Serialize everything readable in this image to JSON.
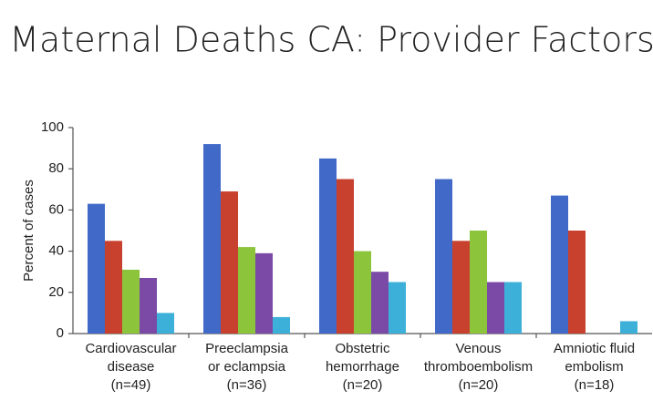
{
  "chart_data": {
    "type": "bar",
    "title": "Maternal Deaths CA: Provider Factors",
    "ylabel": "Percent of cases",
    "categories": [
      [
        "Cardiovascular",
        "disease",
        "(n=49)"
      ],
      [
        "Preeclampsia",
        "or eclampsia",
        "(n=36)"
      ],
      [
        "Obstetric",
        "hemorrhage",
        "(n=20)"
      ],
      [
        "Venous",
        "thromboembolism",
        "(n=20)"
      ],
      [
        "Amniotic fluid",
        "embolism",
        "(n=18)"
      ]
    ],
    "series": [
      {
        "color": "#4169c8",
        "values": [
          63,
          92,
          85,
          75,
          67
        ]
      },
      {
        "color": "#c8412f",
        "values": [
          45,
          69,
          75,
          45,
          50
        ]
      },
      {
        "color": "#8cc43c",
        "values": [
          31,
          42,
          40,
          50,
          null
        ]
      },
      {
        "color": "#7a4aa6",
        "values": [
          27,
          39,
          30,
          25,
          null
        ]
      },
      {
        "color": "#3cb0d8",
        "values": [
          10,
          8,
          25,
          25,
          6
        ]
      }
    ],
    "ylim": [
      0,
      100
    ],
    "yticks": [
      0,
      20,
      40,
      60,
      80,
      100
    ],
    "grid": false
  }
}
